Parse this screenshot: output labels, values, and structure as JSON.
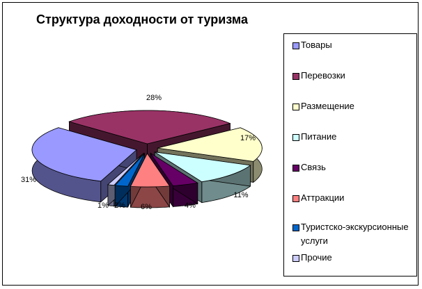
{
  "chart_data": {
    "type": "pie",
    "title": "Структура доходности от туризма",
    "slices": [
      {
        "name": "Товары",
        "value": 31,
        "label": "31%",
        "color": "#9999FF"
      },
      {
        "name": "Перевозки",
        "value": 28,
        "label": "28%",
        "color": "#993366"
      },
      {
        "name": "Размещение",
        "value": 17,
        "label": "17%",
        "color": "#FFFFCC"
      },
      {
        "name": "Питание",
        "value": 11,
        "label": "11%",
        "color": "#CCFFFF"
      },
      {
        "name": "Связь",
        "value": 4,
        "label": "4%",
        "color": "#660066"
      },
      {
        "name": "Аттракции",
        "value": 6,
        "label": "6%",
        "color": "#FF8080"
      },
      {
        "name": "Туристско-экскурсионные услуги",
        "value": 2,
        "label": "2%",
        "color": "#0066CC"
      },
      {
        "name": "Прочие",
        "value": 1,
        "label": "1%",
        "color": "#CCCCFF"
      }
    ],
    "legend": {
      "position": "right",
      "items": [
        "Товары",
        "Перевозки",
        "Размещение",
        "Питание",
        "Связь",
        "Аттракции",
        "Туристско-экскурсионные услуги",
        "Прочие"
      ]
    },
    "three_d": true,
    "exploded": true
  }
}
